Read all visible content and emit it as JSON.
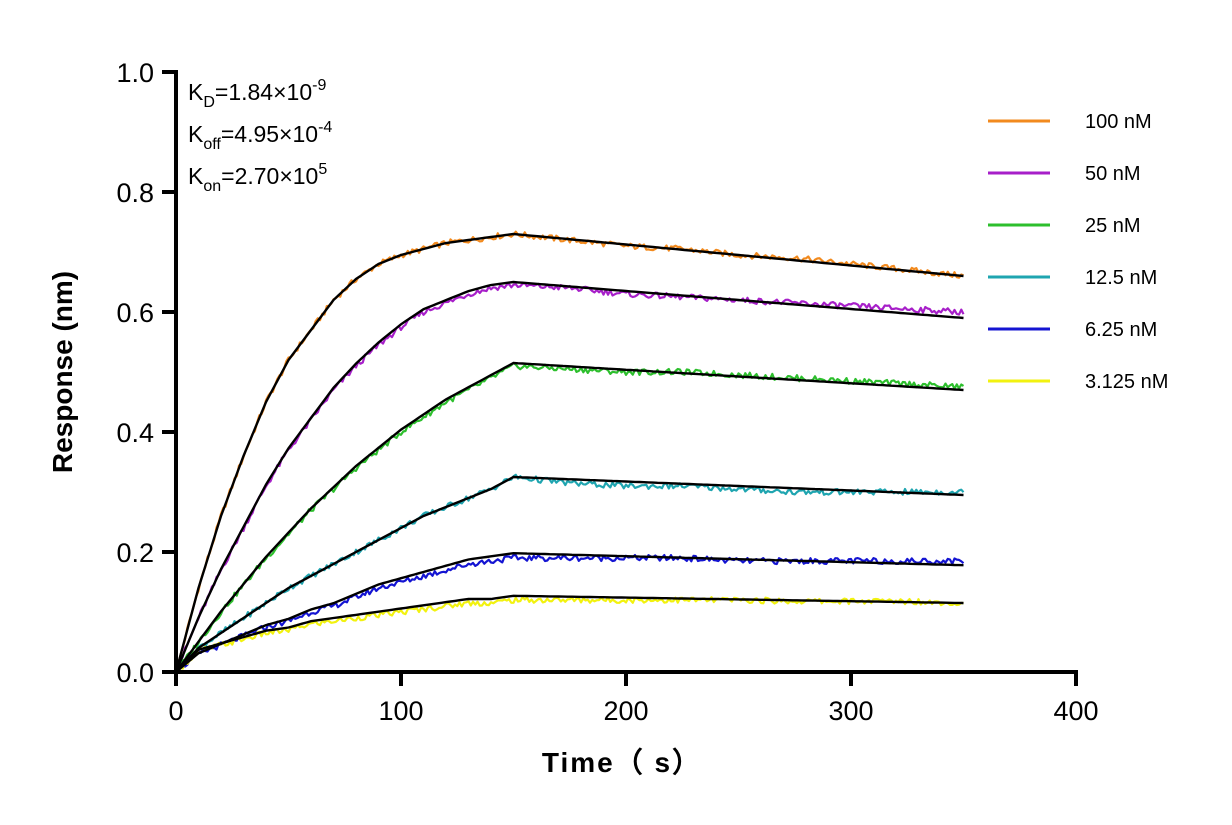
{
  "chart_data": {
    "type": "line",
    "title": "",
    "xlabel": "Time（ s）",
    "ylabel": "Response (nm)",
    "xlim": [
      0,
      400
    ],
    "ylim": [
      0,
      1.0
    ],
    "xticks": [
      0,
      100,
      200,
      300,
      400
    ],
    "xtick_labels": [
      "0",
      "100",
      "200",
      "300",
      "400"
    ],
    "yticks": [
      0,
      0.2,
      0.4,
      0.6,
      0.8,
      1.0
    ],
    "ytick_labels": [
      "0.0",
      "0.2",
      "0.4",
      "0.6",
      "0.8",
      "1.0"
    ],
    "grid": false,
    "legend_position": "right",
    "association_end_time": 150,
    "end_time": 350,
    "annotations": [
      {
        "name": "kd",
        "base": "K",
        "sub": "D",
        "text": "=1.84×10",
        "sup": "-9"
      },
      {
        "name": "koff",
        "base": "K",
        "sub": "off",
        "text": "=4.95×10",
        "sup": "-4"
      },
      {
        "name": "kon",
        "base": "K",
        "sub": "on",
        "text": "=2.70×10",
        "sup": "5"
      }
    ],
    "fit_color": "#000000",
    "series": [
      {
        "name": "100 nM",
        "color": "#f28a1e",
        "x": [
          0,
          10,
          20,
          30,
          40,
          50,
          60,
          70,
          80,
          90,
          100,
          110,
          120,
          130,
          140,
          150,
          175,
          200,
          225,
          250,
          275,
          300,
          325,
          350
        ],
        "y": [
          0.0,
          0.14,
          0.26,
          0.36,
          0.45,
          0.52,
          0.57,
          0.62,
          0.655,
          0.68,
          0.695,
          0.705,
          0.715,
          0.72,
          0.725,
          0.73,
          0.72,
          0.71,
          0.705,
          0.695,
          0.69,
          0.68,
          0.67,
          0.66
        ],
        "fit_x": [
          0,
          150,
          350
        ],
        "fit_y": [
          0.0,
          0.73,
          0.66
        ]
      },
      {
        "name": "50 nM",
        "color": "#a71fc9",
        "x": [
          0,
          10,
          20,
          30,
          40,
          50,
          60,
          70,
          80,
          90,
          100,
          110,
          120,
          130,
          140,
          150,
          175,
          200,
          225,
          250,
          275,
          300,
          325,
          350
        ],
        "y": [
          0.0,
          0.09,
          0.17,
          0.24,
          0.31,
          0.37,
          0.42,
          0.47,
          0.51,
          0.545,
          0.575,
          0.6,
          0.615,
          0.63,
          0.64,
          0.645,
          0.64,
          0.63,
          0.625,
          0.62,
          0.615,
          0.61,
          0.605,
          0.6
        ],
        "fit_x": [
          0,
          150,
          350
        ],
        "fit_y": [
          0.0,
          0.65,
          0.59
        ]
      },
      {
        "name": "25 nM",
        "color": "#2dbf2d",
        "x": [
          0,
          10,
          20,
          30,
          40,
          50,
          60,
          70,
          80,
          90,
          100,
          110,
          120,
          130,
          140,
          150,
          175,
          200,
          225,
          250,
          275,
          300,
          325,
          350
        ],
        "y": [
          0.0,
          0.05,
          0.1,
          0.145,
          0.19,
          0.23,
          0.27,
          0.305,
          0.34,
          0.37,
          0.4,
          0.425,
          0.45,
          0.47,
          0.49,
          0.51,
          0.505,
          0.5,
          0.5,
          0.495,
          0.49,
          0.485,
          0.48,
          0.475
        ],
        "fit_x": [
          0,
          150,
          350
        ],
        "fit_y": [
          0.0,
          0.515,
          0.47
        ]
      },
      {
        "name": "12.5 nM",
        "color": "#1fa5b0",
        "x": [
          0,
          10,
          20,
          30,
          40,
          50,
          60,
          70,
          80,
          90,
          100,
          110,
          120,
          130,
          140,
          150,
          175,
          200,
          225,
          250,
          275,
          300,
          325,
          350
        ],
        "y": [
          0.0,
          0.04,
          0.065,
          0.09,
          0.115,
          0.14,
          0.16,
          0.18,
          0.2,
          0.22,
          0.24,
          0.26,
          0.275,
          0.29,
          0.305,
          0.325,
          0.315,
          0.31,
          0.31,
          0.305,
          0.3,
          0.3,
          0.3,
          0.3
        ],
        "fit_x": [
          0,
          150,
          350
        ],
        "fit_y": [
          0.0,
          0.325,
          0.295
        ]
      },
      {
        "name": "6.25 nM",
        "color": "#1414d2",
        "x": [
          0,
          10,
          20,
          30,
          40,
          50,
          60,
          70,
          80,
          90,
          100,
          110,
          120,
          130,
          140,
          150,
          175,
          200,
          225,
          250,
          275,
          300,
          325,
          350
        ],
        "y": [
          0.0,
          0.03,
          0.045,
          0.06,
          0.075,
          0.085,
          0.1,
          0.11,
          0.125,
          0.14,
          0.15,
          0.16,
          0.17,
          0.18,
          0.185,
          0.19,
          0.19,
          0.19,
          0.19,
          0.185,
          0.185,
          0.185,
          0.185,
          0.185
        ],
        "fit_x": [
          0,
          150,
          350
        ],
        "fit_y": [
          0.0,
          0.198,
          0.178
        ]
      },
      {
        "name": "3.125 nM",
        "color": "#f2f20f",
        "x": [
          0,
          10,
          20,
          30,
          40,
          50,
          60,
          70,
          80,
          90,
          100,
          110,
          120,
          130,
          140,
          150,
          175,
          200,
          225,
          250,
          275,
          300,
          325,
          350
        ],
        "y": [
          0.0,
          0.035,
          0.045,
          0.055,
          0.065,
          0.07,
          0.08,
          0.085,
          0.09,
          0.095,
          0.1,
          0.105,
          0.11,
          0.115,
          0.115,
          0.12,
          0.12,
          0.12,
          0.12,
          0.12,
          0.118,
          0.118,
          0.118,
          0.115
        ],
        "fit_x": [
          0,
          150,
          350
        ],
        "fit_y": [
          0.0,
          0.127,
          0.115
        ]
      }
    ]
  }
}
